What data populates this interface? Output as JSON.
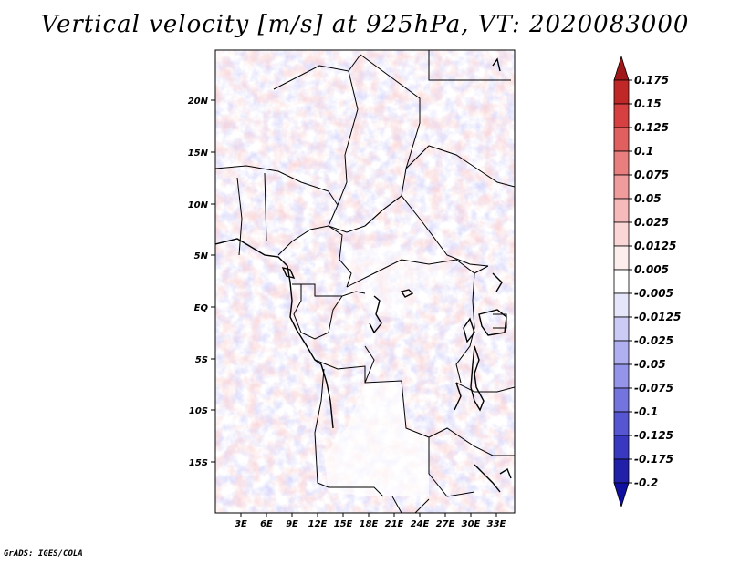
{
  "title": "Vertical velocity [m/s] at 925hPa, VT: 2020083000",
  "footer": "GrADS: IGES/COLA",
  "map": {
    "lat_labels": [
      "20N",
      "15N",
      "10N",
      "5N",
      "EQ",
      "5S",
      "10S",
      "15S"
    ],
    "lon_labels": [
      "3E",
      "6E",
      "9E",
      "12E",
      "15E",
      "18E",
      "21E",
      "24E",
      "27E",
      "30E",
      "33E"
    ]
  },
  "colorbar": {
    "labels": [
      "0.175",
      "0.15",
      "0.125",
      "0.1",
      "0.075",
      "0.05",
      "0.025",
      "0.0125",
      "0.005",
      "-0.005",
      "-0.0125",
      "-0.025",
      "-0.05",
      "-0.075",
      "-0.1",
      "-0.125",
      "-0.175",
      "-0.2"
    ],
    "colors": [
      "#a01818",
      "#c02828",
      "#d64040",
      "#e06060",
      "#e87e7e",
      "#f09c9c",
      "#f6baba",
      "#fad6d6",
      "#fdeeee",
      "#ffffff",
      "#e6e6fa",
      "#cbcbf6",
      "#b0b0f0",
      "#9494ea",
      "#7474de",
      "#5656d2",
      "#3838c0",
      "#2020a8",
      "#1010a0"
    ]
  }
}
